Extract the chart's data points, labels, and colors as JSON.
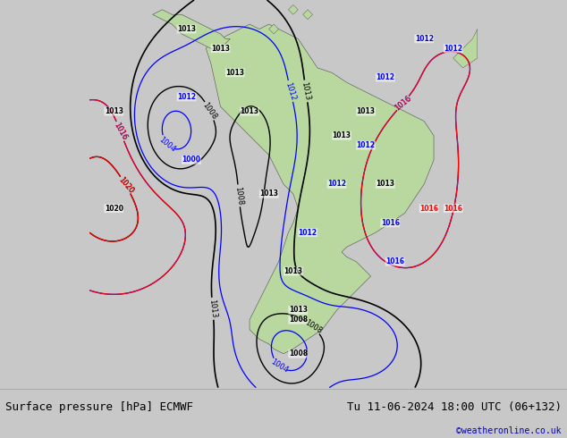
{
  "title_left": "Surface pressure [hPa] ECMWF",
  "title_right": "Tu 11-06-2024 18:00 UTC (06+132)",
  "credit": "©weatheronline.co.uk",
  "bg_color": "#d0d0d0",
  "land_color": "#b8d8a0",
  "water_color": "#d8d8d8",
  "footer_bg": "#f0f0f0",
  "footer_text_color": "#000000",
  "credit_color": "#0000cc",
  "footer_fontsize": 9,
  "credit_fontsize": 7
}
